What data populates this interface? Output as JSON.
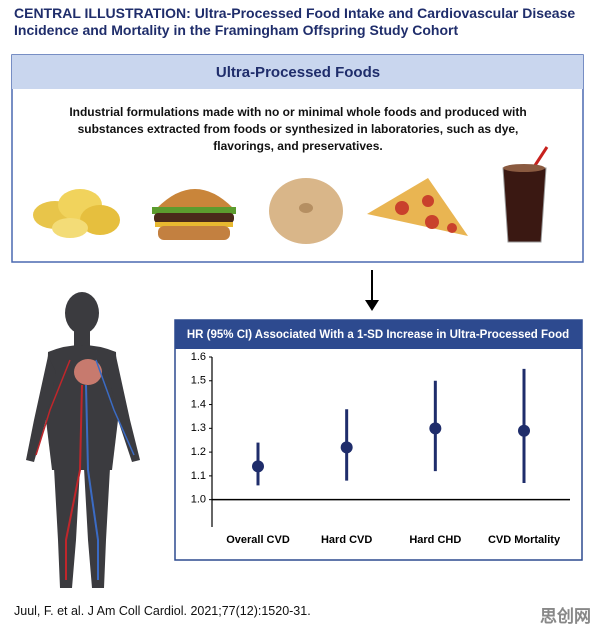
{
  "header": {
    "title": "CENTRAL ILLUSTRATION: Ultra-Processed Food Intake and Cardiovascular Disease Incidence and Mortality in the Framingham Offspring Study Cohort"
  },
  "panel": {
    "title": "Ultra-Processed Foods",
    "description": "Industrial formulations made with no or minimal whole foods and produced with substances extracted from foods or synthesized in laboratories, such as dye, flavorings, and preservatives."
  },
  "chart_data": {
    "type": "errorbar",
    "title": "HR (95% CI) Associated With a 1-SD Increase in Ultra-Processed Food",
    "categories": [
      "Overall CVD",
      "Hard CVD",
      "Hard CHD",
      "CVD Mortality"
    ],
    "series": [
      {
        "color": "#1f2d6b",
        "values": [
          1.14,
          1.22,
          1.3,
          1.29
        ],
        "lower": [
          1.06,
          1.08,
          1.12,
          1.07
        ],
        "upper": [
          1.24,
          1.38,
          1.5,
          1.55
        ]
      }
    ],
    "ylim": [
      0.885,
      1.6
    ],
    "yticks": [
      {
        "value": 1,
        "label": "1.0"
      },
      1.1,
      1.2,
      1.3,
      1.4,
      1.5,
      1.6
    ],
    "reference_line": 1
  },
  "citation": "Juul, F. et al. J Am Coll Cardiol. 2021;77(12):1520-31.",
  "watermark": "思创网"
}
